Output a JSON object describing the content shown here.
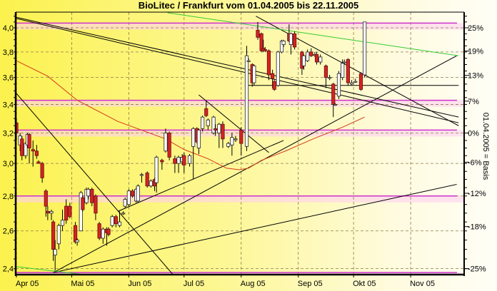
{
  "chart_data": {
    "type": "candlestick",
    "title": "BioLitec / Frankfurt vom 01.04.2005 bis 22.11.2005",
    "y2label": "01.04.2005 = Basis",
    "y_scale": "log",
    "ylim": [
      2.37,
      4.14
    ],
    "xlim": [
      "2005-04-01",
      "2005-11-27"
    ],
    "grid": true,
    "y_ticks": [
      "4,0",
      "3,8",
      "3,6",
      "3,4",
      "3,2",
      "3,0",
      "2,8",
      "2,6",
      "2,4"
    ],
    "y_tick_values": [
      4.0,
      3.8,
      3.6,
      3.4,
      3.2,
      3.0,
      2.8,
      2.6,
      2.4
    ],
    "y2_ticks": [
      {
        "label": "25%",
        "pct": 25
      },
      {
        "label": "19%",
        "pct": 19
      },
      {
        "label": "13%",
        "pct": 13
      },
      {
        "label": "7%",
        "pct": 7
      },
      {
        "label": "0%",
        "pct": 0
      },
      {
        "label": "-6%",
        "pct": -6
      },
      {
        "label": "-12%",
        "pct": -12
      },
      {
        "label": "-18%",
        "pct": -18
      },
      {
        "label": "-25%",
        "pct": -25
      }
    ],
    "x_ticks": [
      {
        "label": "Apr 05",
        "date": "2005-04-01"
      },
      {
        "label": "Mai 05",
        "date": "2005-05-01"
      },
      {
        "label": "Jun 05",
        "date": "2005-06-01"
      },
      {
        "label": "Jul 05",
        "date": "2005-07-01"
      },
      {
        "label": "Aug 05",
        "date": "2005-08-01"
      },
      {
        "label": "Sep 05",
        "date": "2005-09-01"
      },
      {
        "label": "Okt 05",
        "date": "2005-10-01"
      },
      {
        "label": "Nov 05",
        "date": "2005-11-01"
      }
    ],
    "colors": {
      "up": "#ffffff",
      "down": "#d42323",
      "moving_average": "#d43a1a",
      "trend": "#000000",
      "green_trend": "#33cc33",
      "levels": "#cc33cc",
      "level_band": "#ffd0f0",
      "grid": "#8a7a4a"
    },
    "candles_columns": [
      "date",
      "open",
      "high",
      "low",
      "close"
    ],
    "candles": [
      [
        "2005-04-01",
        3.27,
        3.3,
        3.15,
        3.2
      ],
      [
        "2005-04-03",
        3.12,
        3.2,
        3.08,
        3.18
      ],
      [
        "2005-04-04",
        3.16,
        3.18,
        3.02,
        3.05
      ],
      [
        "2005-04-06",
        3.05,
        3.14,
        3.03,
        3.13
      ],
      [
        "2005-04-07",
        3.12,
        3.2,
        3.1,
        3.19
      ],
      [
        "2005-04-08",
        3.19,
        3.2,
        3.0,
        3.1
      ],
      [
        "2005-04-10",
        3.09,
        3.15,
        2.98,
        3.08
      ],
      [
        "2005-04-12",
        3.08,
        3.12,
        3.03,
        3.05
      ],
      [
        "2005-04-13",
        3.01,
        3.02,
        3.0,
        3.0
      ],
      [
        "2005-04-15",
        3.0,
        3.01,
        2.88,
        2.91
      ],
      [
        "2005-04-17",
        2.83,
        2.84,
        2.68,
        2.74
      ],
      [
        "2005-04-18",
        2.71,
        2.74,
        2.66,
        2.7
      ],
      [
        "2005-04-20",
        2.7,
        2.72,
        2.66,
        2.71
      ],
      [
        "2005-04-21",
        2.65,
        2.66,
        2.44,
        2.5
      ],
      [
        "2005-04-22",
        2.47,
        2.55,
        2.39,
        2.5
      ],
      [
        "2005-04-24",
        2.53,
        2.64,
        2.5,
        2.63
      ],
      [
        "2005-04-26",
        2.63,
        2.72,
        2.6,
        2.66
      ],
      [
        "2005-04-28",
        2.74,
        2.78,
        2.64,
        2.66
      ],
      [
        "2005-04-30",
        2.74,
        2.76,
        2.67,
        2.68
      ],
      [
        "2005-05-03",
        2.63,
        2.65,
        2.53,
        2.54
      ],
      [
        "2005-05-04",
        2.54,
        2.56,
        2.52,
        2.55
      ],
      [
        "2005-05-06",
        2.6,
        2.83,
        2.6,
        2.82
      ],
      [
        "2005-05-07",
        2.79,
        2.8,
        2.71,
        2.72
      ],
      [
        "2005-05-09",
        2.76,
        2.85,
        2.75,
        2.84
      ],
      [
        "2005-05-10",
        2.8,
        2.85,
        2.78,
        2.84
      ],
      [
        "2005-05-12",
        2.84,
        2.85,
        2.74,
        2.76
      ],
      [
        "2005-05-14",
        2.8,
        2.81,
        2.66,
        2.7
      ],
      [
        "2005-05-16",
        2.64,
        2.65,
        2.55,
        2.56
      ],
      [
        "2005-05-18",
        2.56,
        2.62,
        2.53,
        2.61
      ],
      [
        "2005-05-20",
        2.61,
        2.62,
        2.52,
        2.59
      ],
      [
        "2005-05-21",
        2.61,
        2.62,
        2.57,
        2.58
      ],
      [
        "2005-05-23",
        2.63,
        2.69,
        2.62,
        2.68
      ],
      [
        "2005-05-25",
        2.68,
        2.69,
        2.62,
        2.64
      ],
      [
        "2005-05-27",
        2.63,
        2.71,
        2.62,
        2.65
      ],
      [
        "2005-05-29",
        2.7,
        2.71,
        2.69,
        2.7
      ],
      [
        "2005-05-30",
        2.74,
        2.79,
        2.73,
        2.78
      ],
      [
        "2005-06-01",
        2.75,
        2.84,
        2.74,
        2.83
      ],
      [
        "2005-06-03",
        2.83,
        2.84,
        2.79,
        2.8
      ],
      [
        "2005-06-05",
        2.77,
        2.85,
        2.76,
        2.84
      ],
      [
        "2005-06-06",
        2.77,
        2.87,
        2.76,
        2.86
      ],
      [
        "2005-06-08",
        2.93,
        2.94,
        2.88,
        2.93
      ],
      [
        "2005-06-11",
        2.94,
        2.95,
        2.85,
        2.86
      ],
      [
        "2005-06-13",
        2.86,
        2.9,
        2.85,
        2.89
      ],
      [
        "2005-06-15",
        2.9,
        2.91,
        2.83,
        2.86
      ],
      [
        "2005-06-16",
        2.88,
        3.05,
        2.82,
        3.04
      ],
      [
        "2005-06-19",
        3.02,
        3.03,
        2.96,
        3.01
      ],
      [
        "2005-06-21",
        3.08,
        3.23,
        3.07,
        3.2
      ],
      [
        "2005-06-23",
        3.2,
        3.21,
        3.02,
        3.04
      ],
      [
        "2005-06-26",
        3.03,
        3.05,
        2.94,
        3.0
      ],
      [
        "2005-06-28",
        3.0,
        3.05,
        2.94,
        3.04
      ],
      [
        "2005-06-30",
        3.01,
        3.06,
        2.99,
        3.04
      ],
      [
        "2005-07-01",
        3.05,
        3.07,
        2.94,
        2.99
      ],
      [
        "2005-07-04",
        3.0,
        3.06,
        2.98,
        3.05
      ],
      [
        "2005-07-06",
        3.11,
        3.24,
        2.9,
        3.23
      ],
      [
        "2005-07-08",
        3.23,
        3.24,
        3.13,
        3.14
      ],
      [
        "2005-07-09",
        3.1,
        3.23,
        3.06,
        3.22
      ],
      [
        "2005-07-11",
        3.23,
        3.32,
        3.21,
        3.31
      ],
      [
        "2005-07-13",
        3.37,
        3.43,
        3.31,
        3.32
      ],
      [
        "2005-07-14",
        3.25,
        3.3,
        3.22,
        3.29
      ],
      [
        "2005-07-17",
        3.2,
        3.32,
        3.19,
        3.31
      ],
      [
        "2005-07-18",
        3.23,
        3.26,
        3.18,
        3.22
      ],
      [
        "2005-07-20",
        3.2,
        3.27,
        3.1,
        3.26
      ],
      [
        "2005-07-22",
        3.26,
        3.28,
        3.1,
        3.16
      ],
      [
        "2005-07-25",
        3.11,
        3.14,
        3.1,
        3.13
      ],
      [
        "2005-07-27",
        3.12,
        3.2,
        3.05,
        3.17
      ],
      [
        "2005-07-29",
        3.16,
        3.18,
        3.14,
        3.16
      ],
      [
        "2005-08-01",
        3.22,
        3.24,
        3.05,
        3.13
      ],
      [
        "2005-08-04",
        3.11,
        3.85,
        3.08,
        3.77
      ],
      [
        "2005-08-05",
        3.73,
        3.75,
        3.72,
        3.73
      ],
      [
        "2005-08-07",
        3.7,
        3.71,
        3.53,
        3.56
      ],
      [
        "2005-08-08",
        3.56,
        3.7,
        3.54,
        3.69
      ],
      [
        "2005-08-10",
        3.98,
        4.05,
        3.9,
        3.92
      ],
      [
        "2005-08-12",
        3.95,
        3.96,
        3.8,
        3.81
      ],
      [
        "2005-08-13",
        3.83,
        3.9,
        3.8,
        3.81
      ],
      [
        "2005-08-14",
        3.82,
        3.84,
        3.8,
        3.81
      ],
      [
        "2005-08-16",
        3.81,
        3.82,
        3.58,
        3.62
      ],
      [
        "2005-08-18",
        3.63,
        3.66,
        3.52,
        3.59
      ],
      [
        "2005-08-19",
        3.57,
        3.58,
        3.5,
        3.51
      ],
      [
        "2005-08-21",
        3.54,
        3.81,
        3.53,
        3.8
      ],
      [
        "2005-08-23",
        3.8,
        3.9,
        3.79,
        3.89
      ],
      [
        "2005-08-24",
        3.86,
        3.9,
        3.84,
        3.89
      ],
      [
        "2005-08-27",
        3.95,
        4.03,
        3.88,
        3.89
      ],
      [
        "2005-08-28",
        3.86,
        3.96,
        3.78,
        3.95
      ],
      [
        "2005-08-30",
        3.95,
        3.97,
        3.82,
        3.84
      ],
      [
        "2005-09-03",
        3.8,
        3.81,
        3.62,
        3.67
      ],
      [
        "2005-09-04",
        3.69,
        3.78,
        3.66,
        3.77
      ],
      [
        "2005-09-06",
        3.73,
        3.82,
        3.72,
        3.8
      ],
      [
        "2005-09-08",
        3.8,
        3.83,
        3.76,
        3.77
      ],
      [
        "2005-09-10",
        3.78,
        3.8,
        3.76,
        3.78
      ],
      [
        "2005-09-11",
        3.78,
        3.8,
        3.7,
        3.72
      ],
      [
        "2005-09-13",
        3.72,
        3.78,
        3.7,
        3.76
      ],
      [
        "2005-09-16",
        3.69,
        3.7,
        3.52,
        3.6
      ],
      [
        "2005-09-18",
        3.6,
        3.62,
        3.58,
        3.6
      ],
      [
        "2005-09-20",
        3.55,
        3.56,
        3.31,
        3.4
      ],
      [
        "2005-09-21",
        3.4,
        3.41,
        3.39,
        3.4
      ],
      [
        "2005-09-23",
        3.46,
        3.65,
        3.44,
        3.63
      ],
      [
        "2005-09-25",
        3.6,
        3.74,
        3.58,
        3.71
      ],
      [
        "2005-09-26",
        3.72,
        3.74,
        3.7,
        3.72
      ],
      [
        "2005-09-28",
        3.74,
        3.75,
        3.54,
        3.56
      ],
      [
        "2005-09-30",
        3.55,
        3.58,
        3.54,
        3.56
      ],
      [
        "2005-10-02",
        3.57,
        3.59,
        3.56,
        3.57
      ],
      [
        "2005-10-05",
        3.63,
        3.64,
        3.5,
        3.51
      ],
      [
        "2005-10-07",
        3.62,
        4.05,
        3.6,
        4.05
      ]
    ],
    "moving_average": [
      [
        "2005-04-01",
        3.73
      ],
      [
        "2005-04-18",
        3.61
      ],
      [
        "2005-05-04",
        3.43
      ],
      [
        "2005-05-26",
        3.28
      ],
      [
        "2005-06-21",
        3.16
      ],
      [
        "2005-07-01",
        3.09
      ],
      [
        "2005-07-14",
        3.03
      ],
      [
        "2005-07-24",
        2.97
      ],
      [
        "2005-07-31",
        2.96
      ],
      [
        "2005-08-05",
        2.97
      ],
      [
        "2005-08-12",
        3.02
      ],
      [
        "2005-08-25",
        3.08
      ],
      [
        "2005-09-09",
        3.16
      ],
      [
        "2005-09-25",
        3.24
      ],
      [
        "2005-10-07",
        3.31
      ]
    ],
    "horizontal_levels": [
      4.04,
      3.43,
      3.22,
      2.8,
      2.38
    ],
    "trend_lines": [
      {
        "color": "trend",
        "points": [
          [
            "2005-04-01",
            4.09
          ],
          [
            "2005-11-27",
            3.31
          ]
        ]
      },
      {
        "color": "trend",
        "points": [
          [
            "2005-04-01",
            4.08
          ],
          [
            "2005-11-27",
            3.27
          ]
        ]
      },
      {
        "color": "trend",
        "points": [
          [
            "2005-04-01",
            3.48
          ],
          [
            "2005-06-25",
            2.37
          ]
        ]
      },
      {
        "color": "trend",
        "points": [
          [
            "2005-07-09",
            3.47
          ],
          [
            "2005-08-16",
            3.07
          ]
        ]
      },
      {
        "color": "trend",
        "points": [
          [
            "2005-08-09",
            4.1
          ],
          [
            "2005-11-27",
            3.25
          ]
        ]
      },
      {
        "color": "trend",
        "points": [
          [
            "2005-04-21",
            2.38
          ],
          [
            "2005-11-26",
            3.77
          ]
        ]
      },
      {
        "color": "trend",
        "points": [
          [
            "2005-04-21",
            2.38
          ],
          [
            "2005-11-26",
            2.87
          ]
        ]
      },
      {
        "color": "trend",
        "points": [
          [
            "2005-05-26",
            2.71
          ],
          [
            "2005-08-24",
            3.15
          ]
        ]
      },
      {
        "color": "trend",
        "points": [
          [
            "2005-08-03",
            3.54
          ],
          [
            "2005-11-27",
            3.54
          ]
        ]
      },
      {
        "color": "green_trend",
        "points": [
          [
            "2005-06-22",
            4.13
          ],
          [
            "2005-11-27",
            3.77
          ]
        ]
      },
      {
        "color": "green_trend",
        "points": [
          [
            "2005-04-01",
            2.41
          ],
          [
            "2005-05-08",
            2.37
          ]
        ]
      }
    ]
  }
}
